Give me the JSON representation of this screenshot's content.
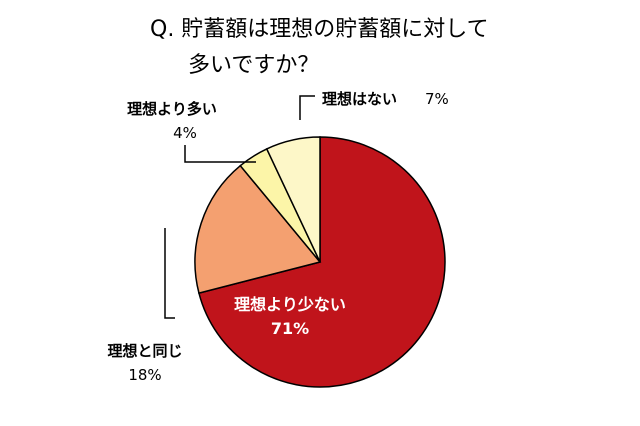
{
  "chart_data": {
    "type": "pie",
    "title_lines": [
      "Q. 貯蓄額は理想の貯蓄額に対して",
      "多いですか？"
    ],
    "slices": [
      {
        "label": "理想より少ない",
        "value": 71,
        "value_text": "71%",
        "color": "#c0141b"
      },
      {
        "label": "理想と同じ",
        "value": 18,
        "value_text": "18%",
        "color": "#f4a070"
      },
      {
        "label": "理想より多い",
        "value": 4,
        "value_text": "4%",
        "color": "#fcf5a8"
      },
      {
        "label": "理想はない",
        "value": 7,
        "value_text": "7%",
        "color": "#fdf7c8"
      }
    ],
    "start_position": "top",
    "direction": "clockwise"
  }
}
